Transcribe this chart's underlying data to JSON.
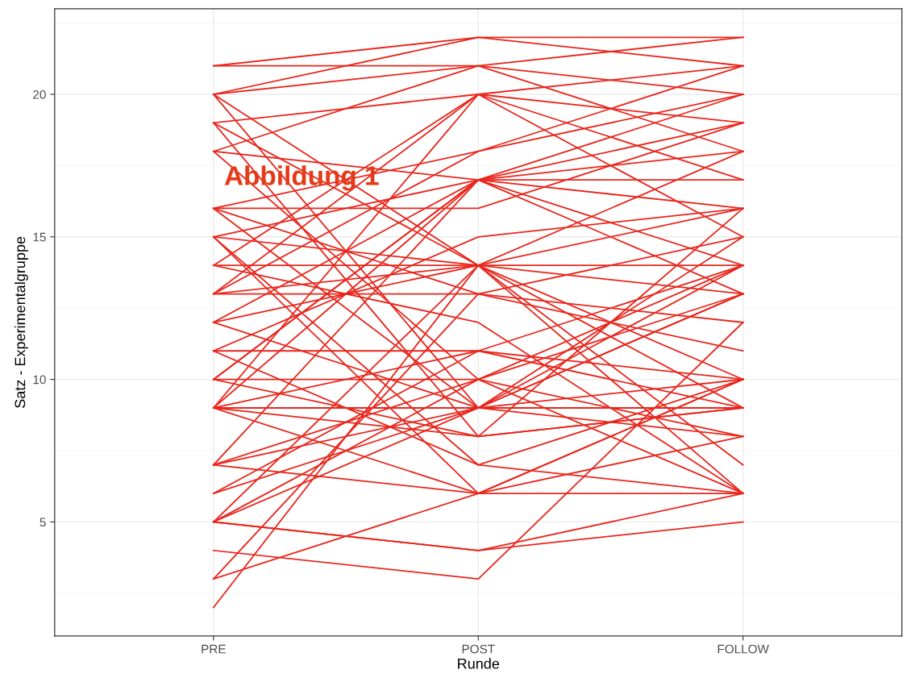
{
  "chart_data": {
    "type": "line",
    "xlabel": "Runde",
    "ylabel": "Satz - Experimentalgruppe",
    "categories": [
      "PRE",
      "POST",
      "FOLLOW"
    ],
    "ylim": [
      1,
      23
    ],
    "yticks": [
      {
        "value": 2.5,
        "label": null
      },
      5,
      {
        "value": 7.5,
        "label": null
      },
      10,
      {
        "value": 12.5,
        "label": null
      },
      15,
      {
        "value": 17.5,
        "label": null
      },
      20,
      {
        "value": 22.5,
        "label": null
      }
    ],
    "grid": true,
    "legend": false,
    "marker": "none",
    "line_style": "solid",
    "annotations": [
      "Abbildung 1"
    ],
    "series": [
      {
        "color": "#e8261c",
        "values": [
          2,
          14,
          16
        ]
      },
      {
        "color": "#e8261c",
        "values": [
          3,
          6,
          10
        ]
      },
      {
        "color": "#e8261c",
        "values": [
          3,
          13,
          15
        ]
      },
      {
        "color": "#e8261c",
        "values": [
          4,
          3,
          12
        ]
      },
      {
        "color": "#e8261c",
        "values": [
          5,
          4,
          6
        ]
      },
      {
        "color": "#e8261c",
        "values": [
          5,
          4,
          5
        ]
      },
      {
        "color": "#e8261c",
        "values": [
          5,
          9,
          13
        ]
      },
      {
        "color": "#e8261c",
        "values": [
          5,
          10,
          14
        ]
      },
      {
        "color": "#e8261c",
        "values": [
          5,
          14,
          18
        ]
      },
      {
        "color": "#e8261c",
        "values": [
          6,
          9,
          14
        ]
      },
      {
        "color": "#e8261c",
        "values": [
          6,
          11,
          9
        ]
      },
      {
        "color": "#e8261c",
        "values": [
          7,
          6,
          6
        ]
      },
      {
        "color": "#e8261c",
        "values": [
          7,
          9,
          10
        ]
      },
      {
        "color": "#e8261c",
        "values": [
          7,
          10,
          13
        ]
      },
      {
        "color": "#e8261c",
        "values": [
          7,
          17,
          19
        ]
      },
      {
        "color": "#e8261c",
        "values": [
          9,
          6,
          10
        ]
      },
      {
        "color": "#e8261c",
        "values": [
          9,
          8,
          16
        ]
      },
      {
        "color": "#e8261c",
        "values": [
          9,
          9,
          9
        ]
      },
      {
        "color": "#e8261c",
        "values": [
          9,
          11,
          14
        ]
      },
      {
        "color": "#e8261c",
        "values": [
          9,
          20,
          17
        ]
      },
      {
        "color": "#e8261c",
        "values": [
          10,
          8,
          9
        ]
      },
      {
        "color": "#e8261c",
        "values": [
          10,
          10,
          8
        ]
      },
      {
        "color": "#e8261c",
        "values": [
          10,
          17,
          20
        ]
      },
      {
        "color": "#e8261c",
        "values": [
          11,
          11,
          10
        ]
      },
      {
        "color": "#e8261c",
        "values": [
          11,
          15,
          16
        ]
      },
      {
        "color": "#e8261c",
        "values": [
          12,
          9,
          15
        ]
      },
      {
        "color": "#e8261c",
        "values": [
          12,
          17,
          18
        ]
      },
      {
        "color": "#e8261c",
        "values": [
          13,
          13,
          11
        ]
      },
      {
        "color": "#e8261c",
        "values": [
          13,
          14,
          9
        ]
      },
      {
        "color": "#e8261c",
        "values": [
          13,
          18,
          20
        ]
      },
      {
        "color": "#e8261c",
        "values": [
          14,
          14,
          14
        ]
      },
      {
        "color": "#e8261c",
        "values": [
          14,
          12,
          6
        ]
      },
      {
        "color": "#e8261c",
        "values": [
          14,
          20,
          21
        ]
      },
      {
        "color": "#e8261c",
        "values": [
          15,
          17,
          13
        ]
      },
      {
        "color": "#e8261c",
        "values": [
          15,
          7,
          6
        ]
      },
      {
        "color": "#e8261c",
        "values": [
          15,
          14,
          7
        ]
      },
      {
        "color": "#e8261c",
        "values": [
          16,
          16,
          19
        ]
      },
      {
        "color": "#e8261c",
        "values": [
          16,
          9,
          8
        ]
      },
      {
        "color": "#e8261c",
        "values": [
          16,
          13,
          12
        ]
      },
      {
        "color": "#e8261c",
        "values": [
          18,
          17,
          16
        ]
      },
      {
        "color": "#e8261c",
        "values": [
          18,
          10,
          6
        ]
      },
      {
        "color": "#e8261c",
        "values": [
          18,
          21,
          22
        ]
      },
      {
        "color": "#e8261c",
        "values": [
          19,
          20,
          19
        ]
      },
      {
        "color": "#e8261c",
        "values": [
          19,
          14,
          10
        ]
      },
      {
        "color": "#e8261c",
        "values": [
          19,
          8,
          9
        ]
      },
      {
        "color": "#e8261c",
        "values": [
          20,
          22,
          21
        ]
      },
      {
        "color": "#e8261c",
        "values": [
          20,
          21,
          18
        ]
      },
      {
        "color": "#e8261c",
        "values": [
          20,
          14,
          6
        ]
      },
      {
        "color": "#e8261c",
        "values": [
          20,
          9,
          13
        ]
      },
      {
        "color": "#e8261c",
        "values": [
          21,
          21,
          20
        ]
      },
      {
        "color": "#e8261c",
        "values": [
          21,
          22,
          22
        ]
      },
      {
        "color": "#e8261c",
        "values": [
          16,
          18,
          21
        ]
      },
      {
        "color": "#e8261c",
        "values": [
          11,
          7,
          10
        ]
      },
      {
        "color": "#e8261c",
        "values": [
          13,
          20,
          15
        ]
      },
      {
        "color": "#e8261c",
        "values": [
          10,
          17,
          14
        ]
      },
      {
        "color": "#e8261c",
        "values": [
          9,
          17,
          17
        ]
      },
      {
        "color": "#e8261c",
        "values": [
          12,
          14,
          13
        ]
      },
      {
        "color": "#e8261c",
        "values": [
          15,
          6,
          8
        ]
      }
    ]
  }
}
